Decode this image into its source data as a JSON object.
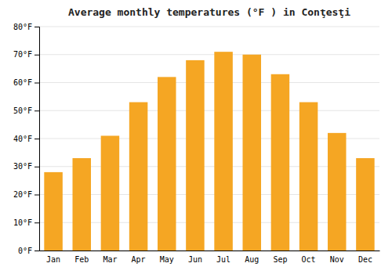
{
  "chart_data": {
    "type": "bar",
    "title": "Average monthly temperatures (°F ) in Conţesţi",
    "categories": [
      "Jan",
      "Feb",
      "Mar",
      "Apr",
      "May",
      "Jun",
      "Jul",
      "Aug",
      "Sep",
      "Oct",
      "Nov",
      "Dec"
    ],
    "values": [
      28,
      33,
      41,
      53,
      62,
      68,
      71,
      70,
      63,
      53,
      42,
      33
    ],
    "color": "#F5A623",
    "ylim": [
      0,
      80
    ],
    "yticks": [
      {
        "value": 0,
        "label": "0°F"
      },
      {
        "value": 10,
        "label": "10°F"
      },
      {
        "value": 20,
        "label": "20°F"
      },
      {
        "value": 30,
        "label": "30°F"
      },
      {
        "value": 40,
        "label": "40°F"
      },
      {
        "value": 50,
        "label": "50°F"
      },
      {
        "value": 60,
        "label": "60°F"
      },
      {
        "value": 70,
        "label": "70°F"
      },
      {
        "value": 80,
        "label": "80°F"
      }
    ],
    "grid": true
  }
}
